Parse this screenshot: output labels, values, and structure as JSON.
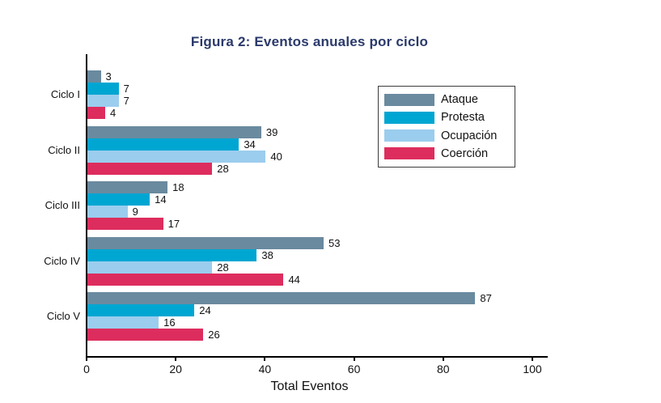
{
  "figure": {
    "title": "Figura 2: Eventos anuales por ciclo",
    "title_color": "#2b3a6b"
  },
  "chart_data": {
    "type": "bar",
    "orientation": "horizontal",
    "title": "Figura 2: Eventos anuales por ciclo",
    "xlabel": "Total Eventos",
    "ylabel": "",
    "categories": [
      "Ciclo I",
      "Ciclo II",
      "Ciclo III",
      "Ciclo IV",
      "Ciclo V"
    ],
    "series": [
      {
        "name": "Ataque",
        "color": "#6a8a9f",
        "values": [
          3,
          39,
          18,
          53,
          87
        ]
      },
      {
        "name": "Protesta",
        "color": "#00a6d2",
        "values": [
          7,
          34,
          14,
          38,
          24
        ]
      },
      {
        "name": "Ocupación",
        "color": "#9bcdee",
        "values": [
          7,
          40,
          9,
          28,
          16
        ]
      },
      {
        "name": "Coerción",
        "color": "#dd2d5e",
        "values": [
          4,
          28,
          17,
          44,
          26
        ]
      }
    ],
    "xlim": [
      0,
      100
    ],
    "xticks": [
      0,
      20,
      40,
      60,
      80,
      100
    ],
    "bar_value_labels": true,
    "grid": false,
    "legend_position": "upper right",
    "axis_color": "#000000"
  }
}
